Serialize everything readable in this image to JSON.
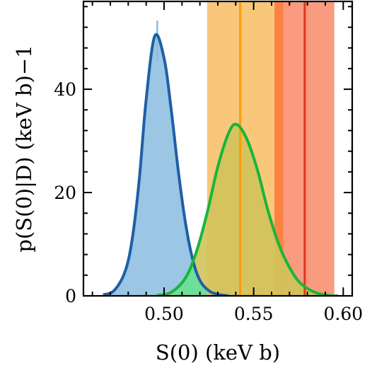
{
  "chart_data": {
    "type": "area",
    "xlabel": "S(0) (keV b)",
    "ylabel": "p(S(0)|D) (keV b)−1",
    "xlim": [
      0.455,
      0.605
    ],
    "ylim": [
      0,
      57
    ],
    "x_ticks": [
      "0.50",
      "0.55",
      "0.60"
    ],
    "x_tick_values": [
      0.5,
      0.55,
      0.6
    ],
    "y_ticks": [
      "0",
      "20",
      "40"
    ],
    "y_tick_values": [
      0,
      20,
      40
    ],
    "grid": false,
    "legend": "none",
    "bands": [
      {
        "x_range": [
          0.524,
          0.562
        ],
        "color": "#f9c77a",
        "center": 0.5425,
        "center_color": "#ff9a0a"
      },
      {
        "x_range": [
          0.562,
          0.595
        ],
        "color": "#fa9a7e",
        "center": 0.5785,
        "center_color": "#e1371b"
      }
    ],
    "series": [
      {
        "kind": "histogram+density",
        "fill_color": "#92c1e2",
        "line_color": "#1f5fa6",
        "peak_x": 0.4948,
        "peak_y": 50.3,
        "x": [
          0.466,
          0.472,
          0.478,
          0.482,
          0.486,
          0.49,
          0.4948,
          0.5,
          0.504,
          0.508,
          0.512,
          0.516,
          0.52,
          0.525,
          0.53,
          0.536
        ],
        "y": [
          0.2,
          1.0,
          4.5,
          10.5,
          22.0,
          38.0,
          50.3,
          46.0,
          36.0,
          24.0,
          14.0,
          7.0,
          3.0,
          1.0,
          0.3,
          0.0
        ]
      },
      {
        "kind": "histogram+density",
        "fill_color": "#d0c35a",
        "line_color": "#18b53c",
        "overlap_fill_color": "#5fe3a1",
        "peak_x": 0.5404,
        "peak_y": 33.2,
        "x": [
          0.496,
          0.504,
          0.512,
          0.518,
          0.524,
          0.53,
          0.536,
          0.5404,
          0.546,
          0.552,
          0.558,
          0.564,
          0.57,
          0.576,
          0.584,
          0.592,
          0.597
        ],
        "y": [
          0.1,
          0.7,
          3.5,
          8.5,
          16.0,
          25.0,
          31.5,
          33.2,
          30.5,
          24.5,
          16.5,
          10.0,
          5.5,
          2.5,
          0.7,
          0.1,
          0.0
        ]
      }
    ],
    "annotations": [
      {
        "x": 0.4962,
        "y_range": [
          45.5,
          53.3
        ],
        "color": "#8cbde0"
      }
    ]
  }
}
